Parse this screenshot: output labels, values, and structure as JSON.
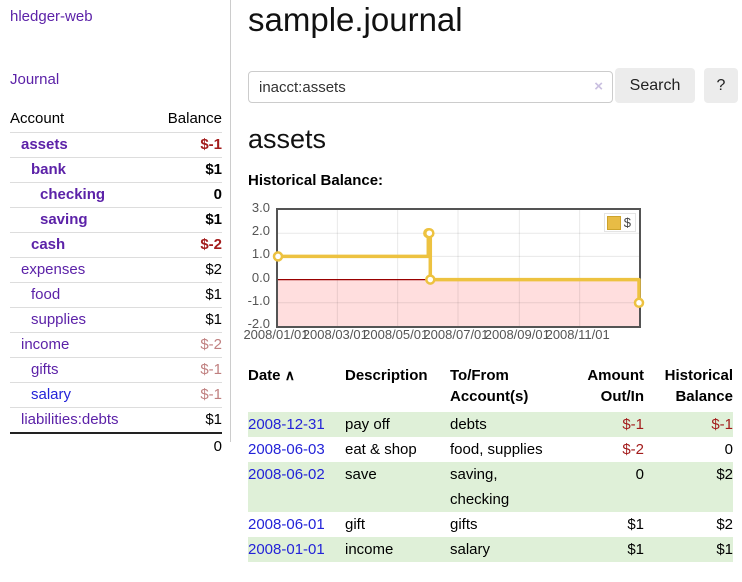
{
  "sidebar": {
    "brand": "hledger-web",
    "journal_label": "Journal",
    "accounts_table": {
      "headers": [
        "Account",
        "Balance"
      ],
      "rows": [
        {
          "name": "assets",
          "indent": 1,
          "in_account": true,
          "link_tone": "purple",
          "balance": "$-1",
          "balance_tone": "negative"
        },
        {
          "name": "bank",
          "indent": 2,
          "in_account": true,
          "link_tone": "purple",
          "balance": "$1",
          "balance_tone": "normal"
        },
        {
          "name": "checking",
          "indent": 3,
          "in_account": true,
          "link_tone": "purple",
          "balance": "0",
          "balance_tone": "normal"
        },
        {
          "name": "saving",
          "indent": 3,
          "in_account": true,
          "link_tone": "purple",
          "balance": "$1",
          "balance_tone": "normal"
        },
        {
          "name": "cash",
          "indent": 2,
          "in_account": true,
          "link_tone": "purple",
          "balance": "$-2",
          "balance_tone": "negative"
        },
        {
          "name": "expenses",
          "indent": 1,
          "in_account": false,
          "link_tone": "purple",
          "balance": "$2",
          "balance_tone": "normal"
        },
        {
          "name": "food",
          "indent": 2,
          "in_account": false,
          "link_tone": "purple",
          "balance": "$1",
          "balance_tone": "normal"
        },
        {
          "name": "supplies",
          "indent": 2,
          "in_account": false,
          "link_tone": "purple",
          "balance": "$1",
          "balance_tone": "normal"
        },
        {
          "name": "income",
          "indent": 1,
          "in_account": false,
          "link_tone": "purple",
          "balance": "$-2",
          "balance_tone": "muted"
        },
        {
          "name": "gifts",
          "indent": 2,
          "in_account": false,
          "link_tone": "purple",
          "balance": "$-1",
          "balance_tone": "muted"
        },
        {
          "name": "salary",
          "indent": 2,
          "in_account": false,
          "link_tone": "blue",
          "balance": "$-1",
          "balance_tone": "muted"
        },
        {
          "name": "liabilities:debts",
          "indent": 1,
          "in_account": false,
          "link_tone": "purple",
          "balance": "$1",
          "balance_tone": "normal"
        }
      ],
      "total": "0"
    }
  },
  "header": {
    "title": "sample.journal"
  },
  "search": {
    "value": "inacct:assets",
    "clear_icon": "×",
    "button_label": "Search",
    "help_label": "?"
  },
  "main": {
    "account_heading": "assets",
    "chart_label": "Historical Balance:"
  },
  "chart_data": {
    "type": "line",
    "step": true,
    "title": "Historical Balance",
    "xlabel": "",
    "ylabel": "",
    "xlim": [
      "2008-01-01",
      "2008-12-31"
    ],
    "ylim": [
      -2.0,
      3.0
    ],
    "grid": true,
    "legend_position": "top-right",
    "series": [
      {
        "name": "$",
        "color": "#edc240",
        "points": [
          [
            "2008-01-01",
            1
          ],
          [
            "2008-06-01",
            2
          ],
          [
            "2008-06-02",
            2
          ],
          [
            "2008-06-03",
            0
          ],
          [
            "2008-12-31",
            -1
          ]
        ]
      }
    ],
    "x_ticks": [
      {
        "date": "2008-01-01",
        "label": "2008/01/01"
      },
      {
        "date": "2008-03-01",
        "label": "2008/03/01"
      },
      {
        "date": "2008-05-01",
        "label": "2008/05/01"
      },
      {
        "date": "2008-07-01",
        "label": "2008/07/01"
      },
      {
        "date": "2008-09-01",
        "label": "2008/09/01"
      },
      {
        "date": "2008-11-01",
        "label": "2008/11/01"
      }
    ],
    "y_ticks": [
      "3.0",
      "2.0",
      "1.0",
      "0.0",
      "-1.0",
      "-2.0"
    ],
    "negative_region_fill": "#ffdede",
    "zero_line_color": "#990000"
  },
  "register": {
    "sort_indicator": "∧",
    "headers": [
      "Date",
      "Description",
      "To/From Account(s)",
      "Amount Out/In",
      "Historical Balance"
    ],
    "rows": [
      {
        "date": "2008-12-31",
        "description": "pay off",
        "accounts": "debts",
        "amount": "$-1",
        "amount_tone": "negative",
        "balance": "$-1",
        "balance_tone": "negative"
      },
      {
        "date": "2008-06-03",
        "description": "eat & shop",
        "accounts": "food, supplies",
        "amount": "$-2",
        "amount_tone": "negative",
        "balance": "0",
        "balance_tone": "normal"
      },
      {
        "date": "2008-06-02",
        "description": "save",
        "accounts": "saving, checking",
        "amount": "0",
        "amount_tone": "normal",
        "balance": "$2",
        "balance_tone": "normal"
      },
      {
        "date": "2008-06-01",
        "description": "gift",
        "accounts": "gifts",
        "amount": "$1",
        "amount_tone": "normal",
        "balance": "$2",
        "balance_tone": "normal"
      },
      {
        "date": "2008-01-01",
        "description": "income",
        "accounts": "salary",
        "amount": "$1",
        "amount_tone": "normal",
        "balance": "$1",
        "balance_tone": "normal"
      }
    ]
  },
  "colors": {
    "link_purple": "#5c22a8",
    "link_blue": "#2323d8",
    "negative_red": "#a31c1c",
    "muted_negative_rose": "#c08080",
    "register_row_green": "#dff0d8",
    "series_gold": "#edc240",
    "chart_negative_region": "#ffdede",
    "chart_zero_line": "#990000",
    "button_gray": "#ececec"
  }
}
